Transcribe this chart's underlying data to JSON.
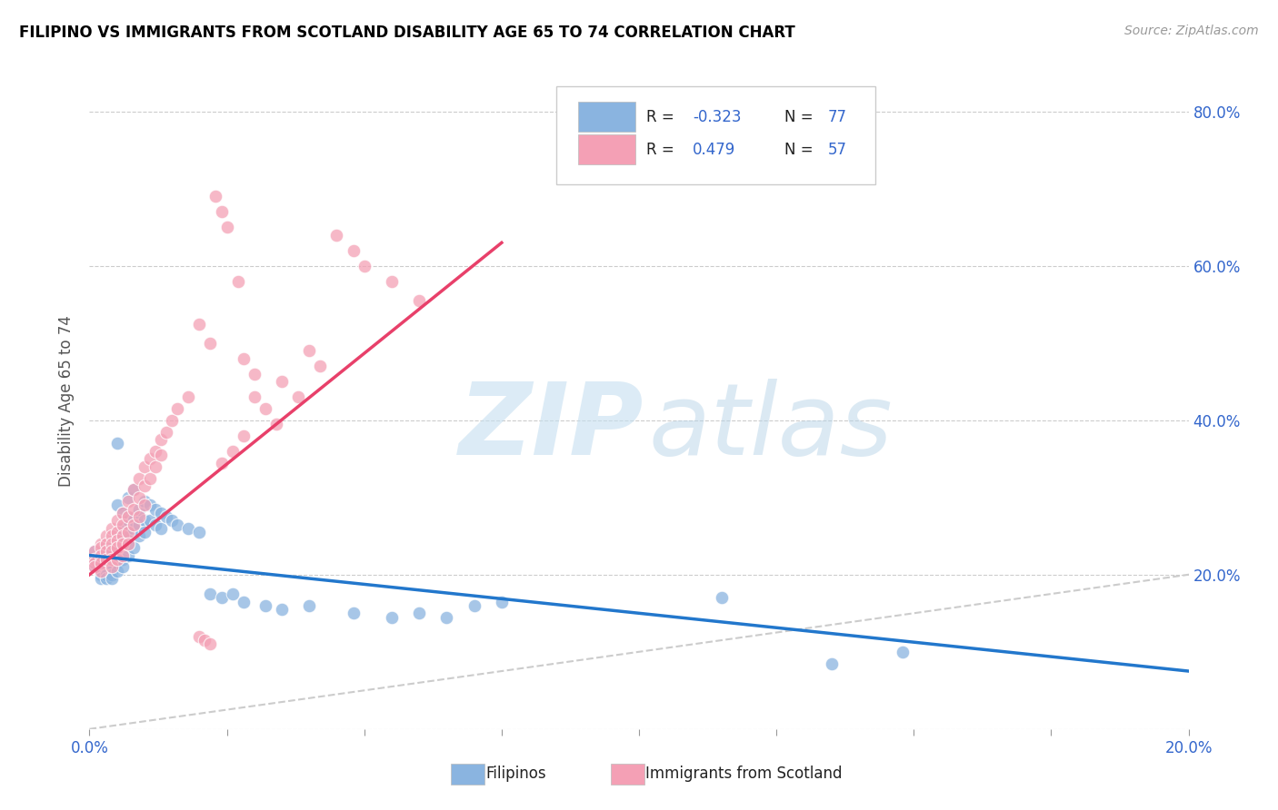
{
  "title": "FILIPINO VS IMMIGRANTS FROM SCOTLAND DISABILITY AGE 65 TO 74 CORRELATION CHART",
  "source": "Source: ZipAtlas.com",
  "ylabel": "Disability Age 65 to 74",
  "xlim": [
    0.0,
    0.2
  ],
  "ylim": [
    0.0,
    0.85
  ],
  "x_ticks": [
    0.0,
    0.025,
    0.05,
    0.075,
    0.1,
    0.125,
    0.15,
    0.175,
    0.2
  ],
  "y_ticks": [
    0.0,
    0.2,
    0.4,
    0.6,
    0.8
  ],
  "color_blue": "#8ab4e0",
  "color_pink": "#f4a0b5",
  "color_line_blue": "#2277cc",
  "color_line_pink": "#e8406a",
  "color_diagonal": "#cccccc",
  "blue_line_x": [
    0.0,
    0.2
  ],
  "blue_line_y": [
    0.225,
    0.075
  ],
  "pink_line_x": [
    0.0,
    0.075
  ],
  "pink_line_y": [
    0.2,
    0.63
  ],
  "blue_scatter": [
    [
      0.001,
      0.23
    ],
    [
      0.001,
      0.22
    ],
    [
      0.001,
      0.215
    ],
    [
      0.001,
      0.21
    ],
    [
      0.002,
      0.225
    ],
    [
      0.002,
      0.22
    ],
    [
      0.002,
      0.215
    ],
    [
      0.002,
      0.21
    ],
    [
      0.002,
      0.205
    ],
    [
      0.002,
      0.2
    ],
    [
      0.002,
      0.195
    ],
    [
      0.003,
      0.235
    ],
    [
      0.003,
      0.225
    ],
    [
      0.003,
      0.22
    ],
    [
      0.003,
      0.215
    ],
    [
      0.003,
      0.21
    ],
    [
      0.003,
      0.2
    ],
    [
      0.003,
      0.195
    ],
    [
      0.004,
      0.23
    ],
    [
      0.004,
      0.22
    ],
    [
      0.004,
      0.215
    ],
    [
      0.004,
      0.21
    ],
    [
      0.004,
      0.2
    ],
    [
      0.004,
      0.195
    ],
    [
      0.005,
      0.37
    ],
    [
      0.005,
      0.29
    ],
    [
      0.005,
      0.225
    ],
    [
      0.005,
      0.215
    ],
    [
      0.005,
      0.205
    ],
    [
      0.006,
      0.28
    ],
    [
      0.006,
      0.26
    ],
    [
      0.006,
      0.25
    ],
    [
      0.006,
      0.23
    ],
    [
      0.006,
      0.22
    ],
    [
      0.006,
      0.21
    ],
    [
      0.007,
      0.3
    ],
    [
      0.007,
      0.27
    ],
    [
      0.007,
      0.255
    ],
    [
      0.007,
      0.24
    ],
    [
      0.007,
      0.225
    ],
    [
      0.008,
      0.31
    ],
    [
      0.008,
      0.275
    ],
    [
      0.008,
      0.26
    ],
    [
      0.008,
      0.235
    ],
    [
      0.009,
      0.285
    ],
    [
      0.009,
      0.265
    ],
    [
      0.009,
      0.25
    ],
    [
      0.01,
      0.295
    ],
    [
      0.01,
      0.27
    ],
    [
      0.01,
      0.255
    ],
    [
      0.011,
      0.29
    ],
    [
      0.011,
      0.27
    ],
    [
      0.012,
      0.285
    ],
    [
      0.012,
      0.265
    ],
    [
      0.013,
      0.28
    ],
    [
      0.013,
      0.26
    ],
    [
      0.014,
      0.275
    ],
    [
      0.015,
      0.27
    ],
    [
      0.016,
      0.265
    ],
    [
      0.018,
      0.26
    ],
    [
      0.02,
      0.255
    ],
    [
      0.022,
      0.175
    ],
    [
      0.024,
      0.17
    ],
    [
      0.026,
      0.175
    ],
    [
      0.028,
      0.165
    ],
    [
      0.032,
      0.16
    ],
    [
      0.035,
      0.155
    ],
    [
      0.04,
      0.16
    ],
    [
      0.048,
      0.15
    ],
    [
      0.055,
      0.145
    ],
    [
      0.06,
      0.15
    ],
    [
      0.065,
      0.145
    ],
    [
      0.07,
      0.16
    ],
    [
      0.075,
      0.165
    ],
    [
      0.115,
      0.17
    ],
    [
      0.148,
      0.1
    ],
    [
      0.135,
      0.085
    ]
  ],
  "pink_scatter": [
    [
      0.001,
      0.23
    ],
    [
      0.001,
      0.22
    ],
    [
      0.001,
      0.215
    ],
    [
      0.001,
      0.21
    ],
    [
      0.002,
      0.24
    ],
    [
      0.002,
      0.235
    ],
    [
      0.002,
      0.225
    ],
    [
      0.002,
      0.215
    ],
    [
      0.002,
      0.205
    ],
    [
      0.003,
      0.25
    ],
    [
      0.003,
      0.24
    ],
    [
      0.003,
      0.23
    ],
    [
      0.003,
      0.22
    ],
    [
      0.004,
      0.26
    ],
    [
      0.004,
      0.25
    ],
    [
      0.004,
      0.24
    ],
    [
      0.004,
      0.23
    ],
    [
      0.004,
      0.22
    ],
    [
      0.004,
      0.21
    ],
    [
      0.005,
      0.27
    ],
    [
      0.005,
      0.255
    ],
    [
      0.005,
      0.245
    ],
    [
      0.005,
      0.235
    ],
    [
      0.005,
      0.22
    ],
    [
      0.006,
      0.28
    ],
    [
      0.006,
      0.265
    ],
    [
      0.006,
      0.25
    ],
    [
      0.006,
      0.24
    ],
    [
      0.006,
      0.225
    ],
    [
      0.007,
      0.295
    ],
    [
      0.007,
      0.275
    ],
    [
      0.007,
      0.255
    ],
    [
      0.007,
      0.24
    ],
    [
      0.008,
      0.31
    ],
    [
      0.008,
      0.285
    ],
    [
      0.008,
      0.265
    ],
    [
      0.009,
      0.325
    ],
    [
      0.009,
      0.3
    ],
    [
      0.009,
      0.275
    ],
    [
      0.01,
      0.34
    ],
    [
      0.01,
      0.315
    ],
    [
      0.01,
      0.29
    ],
    [
      0.011,
      0.35
    ],
    [
      0.011,
      0.325
    ],
    [
      0.012,
      0.36
    ],
    [
      0.012,
      0.34
    ],
    [
      0.013,
      0.375
    ],
    [
      0.013,
      0.355
    ],
    [
      0.014,
      0.385
    ],
    [
      0.015,
      0.4
    ],
    [
      0.016,
      0.415
    ],
    [
      0.018,
      0.43
    ],
    [
      0.02,
      0.12
    ],
    [
      0.021,
      0.115
    ],
    [
      0.022,
      0.11
    ],
    [
      0.023,
      0.69
    ],
    [
      0.024,
      0.67
    ],
    [
      0.025,
      0.65
    ],
    [
      0.027,
      0.58
    ],
    [
      0.045,
      0.64
    ],
    [
      0.048,
      0.62
    ],
    [
      0.05,
      0.6
    ],
    [
      0.055,
      0.58
    ],
    [
      0.06,
      0.555
    ],
    [
      0.02,
      0.525
    ],
    [
      0.022,
      0.5
    ],
    [
      0.03,
      0.43
    ],
    [
      0.04,
      0.49
    ],
    [
      0.042,
      0.47
    ],
    [
      0.035,
      0.45
    ],
    [
      0.038,
      0.43
    ],
    [
      0.032,
      0.415
    ],
    [
      0.034,
      0.395
    ],
    [
      0.028,
      0.38
    ],
    [
      0.026,
      0.36
    ],
    [
      0.024,
      0.345
    ],
    [
      0.028,
      0.48
    ],
    [
      0.03,
      0.46
    ]
  ]
}
